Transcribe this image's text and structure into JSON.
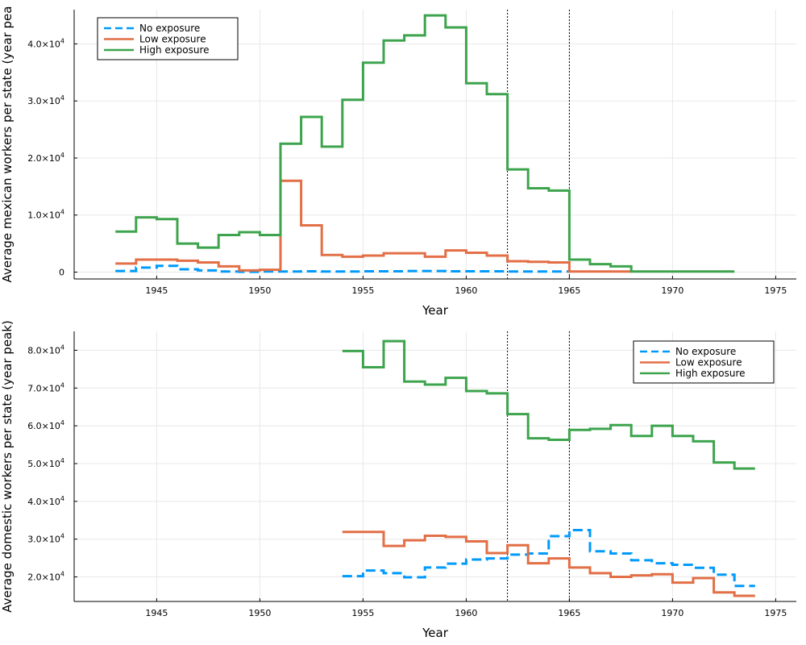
{
  "chart_data": [
    {
      "type": "line",
      "step": "post",
      "title": "",
      "xlabel": "Year",
      "ylabel": "Average mexican workers per state (year pea",
      "xlim": [
        1941,
        1976
      ],
      "ylim": [
        -1200,
        46000
      ],
      "x_ticks": [
        1945,
        1950,
        1955,
        1960,
        1965,
        1970,
        1975
      ],
      "y_ticks": [
        {
          "value": 0,
          "mantissa": "0",
          "exp": ""
        },
        {
          "value": 10000,
          "mantissa": "1.0×10",
          "exp": "4"
        },
        {
          "value": 20000,
          "mantissa": "2.0×10",
          "exp": "4"
        },
        {
          "value": 30000,
          "mantissa": "3.0×10",
          "exp": "4"
        },
        {
          "value": 40000,
          "mantissa": "4.0×10",
          "exp": "4"
        }
      ],
      "vlines": [
        1962,
        1965
      ],
      "grid": true,
      "legend": {
        "position": "top-left"
      },
      "series": [
        {
          "name": "No exposure",
          "color": "#009AFA",
          "dash": "dashed",
          "x": [
            1943,
            1944,
            1945,
            1946,
            1947,
            1948,
            1949,
            1950,
            1951,
            1952,
            1953,
            1954,
            1955,
            1956,
            1957,
            1958,
            1959,
            1960,
            1961,
            1962,
            1963,
            1964,
            1965
          ],
          "y": [
            200,
            800,
            1100,
            500,
            300,
            100,
            50,
            100,
            100,
            150,
            100,
            100,
            150,
            150,
            200,
            200,
            150,
            150,
            150,
            100,
            100,
            100,
            100
          ]
        },
        {
          "name": "Low exposure",
          "color": "#E26F46",
          "dash": "solid",
          "x": [
            1943,
            1944,
            1945,
            1946,
            1947,
            1948,
            1949,
            1950,
            1951,
            1952,
            1953,
            1954,
            1955,
            1956,
            1957,
            1958,
            1959,
            1960,
            1961,
            1962,
            1963,
            1964,
            1965,
            1966,
            1967,
            1968
          ],
          "y": [
            1500,
            2200,
            2200,
            2000,
            1700,
            1000,
            300,
            400,
            16000,
            8200,
            3000,
            2700,
            2900,
            3300,
            3300,
            2700,
            3800,
            3400,
            2900,
            1900,
            1800,
            1700,
            100,
            100,
            100,
            100
          ]
        },
        {
          "name": "High exposure",
          "color": "#3DA44D",
          "dash": "solid",
          "x": [
            1943,
            1944,
            1945,
            1946,
            1947,
            1948,
            1949,
            1950,
            1951,
            1952,
            1953,
            1954,
            1955,
            1956,
            1957,
            1958,
            1959,
            1960,
            1961,
            1962,
            1963,
            1964,
            1965,
            1966,
            1967,
            1968,
            1969,
            1970,
            1971,
            1972,
            1973
          ],
          "y": [
            7100,
            9600,
            9300,
            5000,
            4300,
            6500,
            7000,
            6500,
            22500,
            27200,
            22000,
            30200,
            36700,
            40600,
            41500,
            45000,
            42900,
            33100,
            31200,
            18000,
            14700,
            14300,
            2200,
            1400,
            1000,
            100,
            100,
            100,
            100,
            100,
            100
          ]
        }
      ]
    },
    {
      "type": "line",
      "step": "post",
      "title": "",
      "xlabel": "Year",
      "ylabel": "Average domestic workers per state (year peak)",
      "xlim": [
        1941,
        1976
      ],
      "ylim": [
        13500,
        85000
      ],
      "x_ticks": [
        1945,
        1950,
        1955,
        1960,
        1965,
        1970,
        1975
      ],
      "y_ticks": [
        {
          "value": 20000,
          "mantissa": "2.0×10",
          "exp": "4"
        },
        {
          "value": 30000,
          "mantissa": "3.0×10",
          "exp": "4"
        },
        {
          "value": 40000,
          "mantissa": "4.0×10",
          "exp": "4"
        },
        {
          "value": 50000,
          "mantissa": "5.0×10",
          "exp": "4"
        },
        {
          "value": 60000,
          "mantissa": "6.0×10",
          "exp": "4"
        },
        {
          "value": 70000,
          "mantissa": "7.0×10",
          "exp": "4"
        },
        {
          "value": 80000,
          "mantissa": "8.0×10",
          "exp": "4"
        }
      ],
      "vlines": [
        1962,
        1965
      ],
      "grid": true,
      "legend": {
        "position": "top-right"
      },
      "series": [
        {
          "name": "No exposure",
          "color": "#009AFA",
          "dash": "dashed",
          "x": [
            1954,
            1955,
            1956,
            1957,
            1958,
            1959,
            1960,
            1961,
            1962,
            1963,
            1964,
            1965,
            1966,
            1967,
            1968,
            1969,
            1970,
            1971,
            1972,
            1973,
            1974
          ],
          "y": [
            20200,
            21700,
            21000,
            19900,
            22500,
            23500,
            24600,
            24900,
            25900,
            26200,
            30800,
            32400,
            26800,
            26200,
            24400,
            23600,
            23200,
            22400,
            20600,
            17600,
            17600
          ]
        },
        {
          "name": "Low exposure",
          "color": "#E26F46",
          "dash": "solid",
          "x": [
            1954,
            1955,
            1956,
            1957,
            1958,
            1959,
            1960,
            1961,
            1962,
            1963,
            1964,
            1965,
            1966,
            1967,
            1968,
            1969,
            1970,
            1971,
            1972,
            1973,
            1974
          ],
          "y": [
            31900,
            31900,
            28200,
            29700,
            30900,
            30600,
            29400,
            26300,
            28400,
            23600,
            24900,
            22500,
            21000,
            20000,
            20400,
            20700,
            18500,
            19700,
            15900,
            15000,
            15000
          ]
        },
        {
          "name": "High exposure",
          "color": "#3DA44D",
          "dash": "solid",
          "x": [
            1954,
            1955,
            1956,
            1957,
            1958,
            1959,
            1960,
            1961,
            1962,
            1963,
            1964,
            1965,
            1966,
            1967,
            1968,
            1969,
            1970,
            1971,
            1972,
            1973,
            1974
          ],
          "y": [
            79800,
            75500,
            82400,
            71700,
            70900,
            72700,
            69200,
            68600,
            63100,
            56700,
            56300,
            58900,
            59200,
            60200,
            57300,
            60000,
            57300,
            55900,
            50300,
            48700,
            48700
          ]
        }
      ]
    }
  ]
}
